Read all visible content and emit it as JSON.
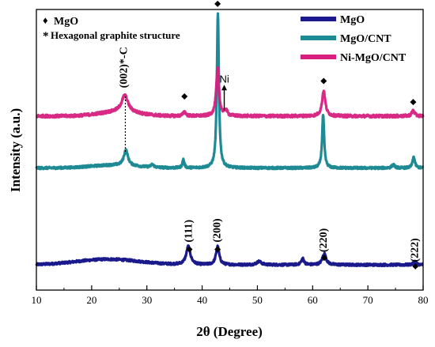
{
  "chart_data": {
    "type": "line",
    "xlabel": "2θ (Degree)",
    "ylabel": "Intensity (a.u.)",
    "xlim": [
      10,
      80
    ],
    "xticks": [
      10,
      20,
      30,
      40,
      50,
      60,
      70,
      80
    ],
    "grid": false,
    "legend_position": "top-right",
    "series": [
      {
        "name": "MgO",
        "color": "#1a1a8c",
        "baseline": 0.09,
        "peaks": [
          {
            "x": 37.5,
            "h": 0.065,
            "w": 0.45
          },
          {
            "x": 42.8,
            "h": 0.065,
            "w": 0.35
          },
          {
            "x": 50.3,
            "h": 0.012,
            "w": 0.5
          },
          {
            "x": 58.2,
            "h": 0.022,
            "w": 0.3
          },
          {
            "x": 62.1,
            "h": 0.04,
            "w": 0.4
          },
          {
            "x": 78.5,
            "h": 0.012,
            "w": 0.3
          }
        ],
        "humps": [
          {
            "x": 23,
            "h": 0.02,
            "w": 8
          }
        ],
        "noise": 0.004
      },
      {
        "name": "MgO/CNT",
        "color": "#1e8a94",
        "baseline": 0.435,
        "peaks": [
          {
            "x": 26.2,
            "h": 0.055,
            "w": 0.45
          },
          {
            "x": 31.0,
            "h": 0.01,
            "w": 0.3
          },
          {
            "x": 36.6,
            "h": 0.03,
            "w": 0.2
          },
          {
            "x": 42.85,
            "h": 0.55,
            "w": 0.22
          },
          {
            "x": 61.9,
            "h": 0.19,
            "w": 0.22
          },
          {
            "x": 74.6,
            "h": 0.012,
            "w": 0.3
          },
          {
            "x": 78.3,
            "h": 0.04,
            "w": 0.25
          }
        ],
        "humps": [
          {
            "x": 24,
            "h": 0.01,
            "w": 6
          }
        ],
        "noise": 0.004
      },
      {
        "name": "Ni-MgO/CNT",
        "color": "#d61f7e",
        "baseline": 0.62,
        "peaks": [
          {
            "x": 26.0,
            "h": 0.06,
            "w": 0.7
          },
          {
            "x": 36.8,
            "h": 0.015,
            "w": 0.3
          },
          {
            "x": 42.8,
            "h": 0.17,
            "w": 0.3
          },
          {
            "x": 44.3,
            "h": 0.02,
            "w": 0.3
          },
          {
            "x": 62.0,
            "h": 0.09,
            "w": 0.35
          },
          {
            "x": 78.2,
            "h": 0.02,
            "w": 0.3
          }
        ],
        "humps": [
          {
            "x": 25,
            "h": 0.015,
            "w": 5
          }
        ],
        "noise": 0.005
      }
    ],
    "peak_labels": [
      {
        "text": "(111)",
        "x": 37.7,
        "y": 0.17
      },
      {
        "text": "(200)",
        "x": 42.8,
        "y": 0.17
      },
      {
        "text": "(220)",
        "x": 62.1,
        "y": 0.135
      },
      {
        "text": "(222)",
        "x": 78.6,
        "y": 0.1
      },
      {
        "text": "(002)*-C",
        "x": 25.9,
        "y": 0.72
      }
    ],
    "diamond_markers": [
      {
        "x": 37.7,
        "y": 0.145
      },
      {
        "x": 42.8,
        "y": 0.145
      },
      {
        "x": 62.1,
        "y": 0.115
      },
      {
        "x": 78.6,
        "y": 0.085
      },
      {
        "x": 36.8,
        "y": 0.69
      },
      {
        "x": 42.8,
        "y": 1.02
      },
      {
        "x": 62.0,
        "y": 0.745
      },
      {
        "x": 78.2,
        "y": 0.67
      }
    ],
    "ni_marker": {
      "text": "Ni",
      "x": 44.0,
      "y": 0.74,
      "arrow_to_y": 0.64
    },
    "cnt_dotted_line": {
      "x": 26.1,
      "y_top": 0.69,
      "y_bottom": 0.49
    },
    "annotations": {
      "mgo_symbol": "♦",
      "mgo_label": "MgO",
      "graphite_symbol": "*",
      "graphite_label": "Hexagonal graphite structure"
    }
  }
}
